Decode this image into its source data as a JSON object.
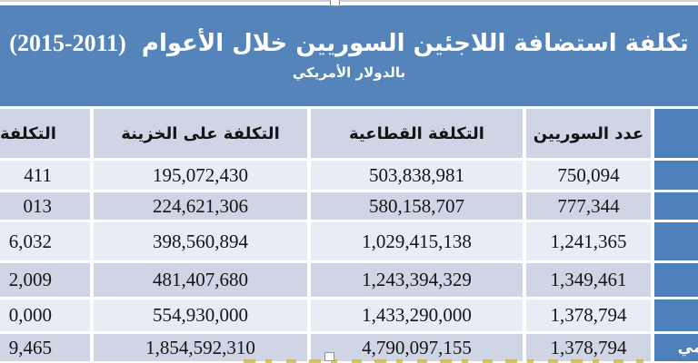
{
  "title": {
    "line1": "تكلفة استضافة اللاجئين السوريين خلال الأعوام",
    "years": "(2015-2011)",
    "subtitle": "بالدولار الأمريكي"
  },
  "table": {
    "header": {
      "total_clipped": "التكلفة",
      "treasury": "التكلفة على الخزينة",
      "sectoral": "التكلفة القطاعية",
      "count": "عدد السوريين",
      "year": ""
    },
    "rows": [
      {
        "total_clipped": "411",
        "treasury": "195,072,430",
        "sectoral": "503,838,981",
        "count": "750,094",
        "year": ""
      },
      {
        "total_clipped": "013",
        "treasury": "224,621,306",
        "sectoral": "580,158,707",
        "count": "777,344",
        "year": ""
      },
      {
        "total_clipped": "6,032",
        "treasury": "398,560,894",
        "sectoral": "1,029,415,138",
        "count": "1,241,365",
        "year": ""
      },
      {
        "total_clipped": "2,009",
        "treasury": "481,407,680",
        "sectoral": "1,243,394,329",
        "count": "1,349,461",
        "year": ""
      },
      {
        "total_clipped": "0,000",
        "treasury": "554,930,000",
        "sectoral": "1,433,290,000",
        "count": "1,378,794",
        "year": ""
      },
      {
        "total_clipped": "9,465",
        "treasury": "1,854,592,310",
        "sectoral": "4,790,097,155",
        "count": "1,378,794",
        "year": "ـمي"
      }
    ]
  },
  "colors": {
    "title_background": "#5584ba",
    "year_column": "#4e80bc",
    "band_light": "#e9ecf4",
    "band_dark": "#cfd5e5",
    "border": "#ffffff",
    "footnote_text": "#c8ba58"
  }
}
